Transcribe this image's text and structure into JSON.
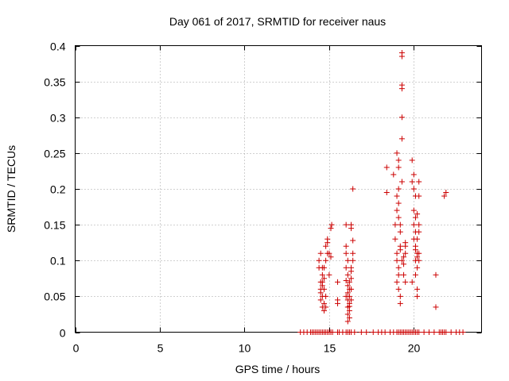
{
  "chart_data": {
    "type": "scatter",
    "title": "Day 061 of 2017, SRMTID for receiver naus",
    "xlabel": "GPS time / hours",
    "ylabel": "SRMTID / TECUs",
    "xlim": [
      0,
      24
    ],
    "ylim": [
      0,
      0.4
    ],
    "xticks": [
      0,
      5,
      10,
      15,
      20
    ],
    "xtick_labels": [
      "0",
      "5",
      "10",
      "15",
      "20"
    ],
    "yticks": [
      0,
      0.05,
      0.1,
      0.15,
      0.2,
      0.25,
      0.3,
      0.35,
      0.4
    ],
    "ytick_labels": [
      "0",
      "0.05",
      "0.1",
      "0.15",
      "0.2",
      "0.25",
      "0.3",
      "0.35",
      "0.4"
    ],
    "grid": true,
    "marker": "+",
    "color": "#cc0000",
    "series": [
      {
        "name": "SRMTID",
        "points": [
          [
            14.4,
            0.1
          ],
          [
            14.5,
            0.11
          ],
          [
            14.4,
            0.09
          ],
          [
            14.6,
            0.09
          ],
          [
            14.6,
            0.08
          ],
          [
            14.6,
            0.07
          ],
          [
            14.5,
            0.06
          ],
          [
            14.5,
            0.055
          ],
          [
            14.6,
            0.05
          ],
          [
            14.5,
            0.045
          ],
          [
            14.7,
            0.04
          ],
          [
            14.6,
            0.035
          ],
          [
            14.7,
            0.03
          ],
          [
            14.8,
            0.035
          ],
          [
            14.7,
            0.06
          ],
          [
            14.8,
            0.05
          ],
          [
            14.7,
            0.09
          ],
          [
            14.8,
            0.1
          ],
          [
            14.9,
            0.11
          ],
          [
            14.6,
            0.065
          ],
          [
            14.5,
            0.07
          ],
          [
            14.7,
            0.075
          ],
          [
            14.8,
            0.12
          ],
          [
            14.9,
            0.13
          ],
          [
            14.9,
            0.125
          ],
          [
            15.0,
            0.11
          ],
          [
            15.1,
            0.105
          ],
          [
            15.1,
            0.145
          ],
          [
            15.15,
            0.15
          ],
          [
            15.0,
            0.08
          ],
          [
            15.5,
            0.07
          ],
          [
            15.5,
            0.045
          ],
          [
            15.5,
            0.04
          ],
          [
            16.0,
            0.15
          ],
          [
            16.0,
            0.12
          ],
          [
            16.0,
            0.11
          ],
          [
            16.1,
            0.1
          ],
          [
            16.0,
            0.09
          ],
          [
            16.1,
            0.08
          ],
          [
            16.2,
            0.07
          ],
          [
            16.1,
            0.065
          ],
          [
            16.2,
            0.06
          ],
          [
            16.1,
            0.055
          ],
          [
            16.2,
            0.05
          ],
          [
            16.1,
            0.045
          ],
          [
            16.2,
            0.04
          ],
          [
            16.1,
            0.035
          ],
          [
            16.2,
            0.03
          ],
          [
            16.1,
            0.025
          ],
          [
            16.2,
            0.02
          ],
          [
            16.1,
            0.015
          ],
          [
            16.3,
            0.045
          ],
          [
            16.3,
            0.06
          ],
          [
            16.3,
            0.075
          ],
          [
            16.4,
            0.2
          ],
          [
            16.3,
            0.15
          ],
          [
            16.3,
            0.145
          ],
          [
            16.4,
            0.128
          ],
          [
            16.4,
            0.11
          ],
          [
            16.3,
            0.09
          ],
          [
            16.4,
            0.1
          ],
          [
            16.0,
            0.072
          ],
          [
            16.3,
            0.085
          ],
          [
            16.2,
            0.036
          ],
          [
            16.0,
            0.05
          ],
          [
            18.4,
            0.23
          ],
          [
            18.4,
            0.195
          ],
          [
            18.8,
            0.22
          ],
          [
            18.9,
            0.15
          ],
          [
            18.9,
            0.13
          ],
          [
            19.0,
            0.11
          ],
          [
            19.0,
            0.1
          ],
          [
            19.1,
            0.09
          ],
          [
            19.1,
            0.08
          ],
          [
            19.0,
            0.07
          ],
          [
            19.1,
            0.06
          ],
          [
            19.2,
            0.05
          ],
          [
            19.2,
            0.04
          ],
          [
            19.0,
            0.25
          ],
          [
            19.1,
            0.24
          ],
          [
            19.1,
            0.23
          ],
          [
            19.1,
            0.2
          ],
          [
            19.0,
            0.19
          ],
          [
            19.1,
            0.18
          ],
          [
            19.0,
            0.17
          ],
          [
            19.1,
            0.16
          ],
          [
            19.2,
            0.15
          ],
          [
            19.2,
            0.14
          ],
          [
            19.2,
            0.12
          ],
          [
            19.3,
            0.39
          ],
          [
            19.3,
            0.385
          ],
          [
            19.3,
            0.345
          ],
          [
            19.3,
            0.34
          ],
          [
            19.3,
            0.3
          ],
          [
            19.3,
            0.27
          ],
          [
            19.3,
            0.21
          ],
          [
            19.2,
            0.115
          ],
          [
            19.3,
            0.1
          ],
          [
            19.4,
            0.095
          ],
          [
            19.4,
            0.105
          ],
          [
            19.5,
            0.11
          ],
          [
            19.5,
            0.12
          ],
          [
            19.5,
            0.125
          ],
          [
            19.4,
            0.08
          ],
          [
            19.5,
            0.07
          ],
          [
            19.9,
            0.24
          ],
          [
            19.9,
            0.21
          ],
          [
            20.0,
            0.22
          ],
          [
            20.0,
            0.2
          ],
          [
            20.1,
            0.19
          ],
          [
            20.0,
            0.17
          ],
          [
            20.1,
            0.16
          ],
          [
            20.0,
            0.15
          ],
          [
            20.1,
            0.14
          ],
          [
            20.0,
            0.13
          ],
          [
            20.1,
            0.12
          ],
          [
            20.2,
            0.11
          ],
          [
            20.1,
            0.1
          ],
          [
            20.2,
            0.09
          ],
          [
            20.1,
            0.08
          ],
          [
            19.9,
            0.07
          ],
          [
            20.2,
            0.06
          ],
          [
            20.2,
            0.05
          ],
          [
            20.3,
            0.21
          ],
          [
            20.2,
            0.165
          ],
          [
            20.3,
            0.15
          ],
          [
            20.3,
            0.14
          ],
          [
            20.2,
            0.13
          ],
          [
            20.3,
            0.11
          ],
          [
            20.1,
            0.115
          ],
          [
            20.2,
            0.105
          ],
          [
            20.3,
            0.1
          ],
          [
            20.3,
            0.19
          ],
          [
            21.3,
            0.08
          ],
          [
            21.3,
            0.035
          ],
          [
            21.8,
            0.19
          ],
          [
            21.9,
            0.195
          ],
          [
            13.3,
            0
          ],
          [
            13.5,
            0
          ],
          [
            13.7,
            0
          ],
          [
            13.9,
            0
          ],
          [
            14.0,
            0
          ],
          [
            14.1,
            0
          ],
          [
            14.2,
            0
          ],
          [
            14.3,
            0
          ],
          [
            14.4,
            0
          ],
          [
            14.5,
            0
          ],
          [
            14.6,
            0
          ],
          [
            14.7,
            0
          ],
          [
            14.8,
            0
          ],
          [
            14.9,
            0
          ],
          [
            15.0,
            0
          ],
          [
            15.1,
            0
          ],
          [
            15.2,
            0
          ],
          [
            15.5,
            0
          ],
          [
            15.6,
            0
          ],
          [
            15.8,
            0
          ],
          [
            16.0,
            0
          ],
          [
            16.1,
            0
          ],
          [
            16.2,
            0
          ],
          [
            16.3,
            0
          ],
          [
            16.5,
            0
          ],
          [
            16.9,
            0
          ],
          [
            17.2,
            0
          ],
          [
            17.6,
            0
          ],
          [
            17.9,
            0
          ],
          [
            18.1,
            0
          ],
          [
            18.3,
            0
          ],
          [
            18.6,
            0
          ],
          [
            18.8,
            0
          ],
          [
            19.0,
            0
          ],
          [
            19.1,
            0
          ],
          [
            19.2,
            0
          ],
          [
            19.3,
            0
          ],
          [
            19.4,
            0
          ],
          [
            19.5,
            0
          ],
          [
            19.6,
            0
          ],
          [
            19.7,
            0
          ],
          [
            19.8,
            0
          ],
          [
            19.9,
            0
          ],
          [
            20.0,
            0
          ],
          [
            20.1,
            0
          ],
          [
            20.2,
            0
          ],
          [
            20.3,
            0
          ],
          [
            20.6,
            0
          ],
          [
            20.9,
            0
          ],
          [
            21.2,
            0
          ],
          [
            21.5,
            0
          ],
          [
            21.6,
            0
          ],
          [
            21.7,
            0
          ],
          [
            21.8,
            0
          ],
          [
            21.9,
            0
          ],
          [
            22.2,
            0
          ],
          [
            22.5,
            0
          ],
          [
            22.7,
            0
          ],
          [
            22.9,
            0
          ]
        ]
      }
    ]
  }
}
